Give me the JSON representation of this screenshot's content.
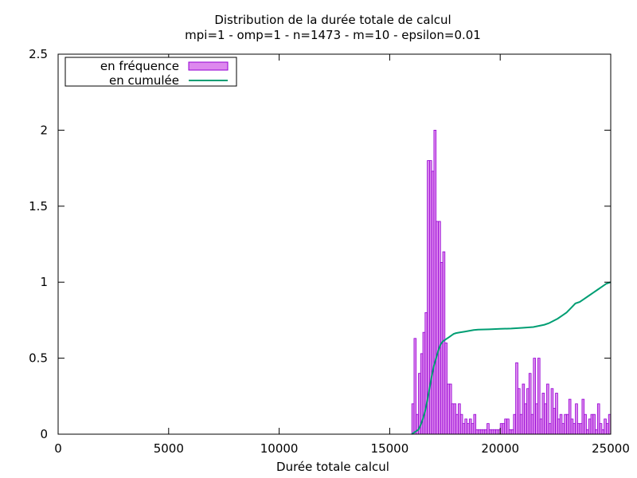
{
  "chart_data": {
    "type": "bar",
    "title": "Distribution de la durée totale de calcul",
    "subtitle": "mpi=1 - omp=1 - n=1473 - m=10 - epsilon=0.01",
    "xlabel": "Durée totale calcul",
    "ylabel": "",
    "xlim": [
      0,
      25000
    ],
    "ylim": [
      0,
      2.5
    ],
    "x_ticks": [
      "0",
      "5000",
      "10000",
      "15000",
      "20000",
      "25000"
    ],
    "y_ticks": [
      "0",
      "0.5",
      "1",
      "1.5",
      "2",
      "2.5"
    ],
    "grid": false,
    "legend_position": "top-left",
    "bin_width": 100,
    "colors": {
      "bar_fill": "#dd88ee",
      "bar_stroke": "#9400d3",
      "line": "#009e73"
    },
    "series": [
      {
        "name": "en fréquence",
        "type": "bar",
        "x": [
          16050,
          16150,
          16250,
          16350,
          16450,
          16550,
          16650,
          16750,
          16850,
          16950,
          17050,
          17150,
          17250,
          17350,
          17450,
          17550,
          17650,
          17750,
          17850,
          17950,
          18050,
          18150,
          18250,
          18350,
          18450,
          18550,
          18650,
          18750,
          18850,
          18950,
          19050,
          19150,
          19250,
          19350,
          19450,
          19550,
          19650,
          19750,
          19850,
          19950,
          20050,
          20150,
          20250,
          20350,
          20450,
          20550,
          20650,
          20750,
          20850,
          20950,
          21050,
          21150,
          21250,
          21350,
          21450,
          21550,
          21650,
          21750,
          21850,
          21950,
          22050,
          22150,
          22250,
          22350,
          22450,
          22550,
          22650,
          22750,
          22850,
          22950,
          23050,
          23150,
          23250,
          23350,
          23450,
          23550,
          23650,
          23750,
          23850,
          23950,
          24050,
          24150,
          24250,
          24350,
          24450,
          24550,
          24650,
          24750,
          24850,
          24950
        ],
        "values": [
          0.2,
          0.63,
          0.13,
          0.4,
          0.53,
          0.67,
          0.8,
          1.8,
          1.8,
          1.73,
          2.0,
          1.4,
          1.4,
          1.13,
          1.2,
          0.6,
          0.33,
          0.33,
          0.2,
          0.2,
          0.13,
          0.2,
          0.13,
          0.07,
          0.1,
          0.07,
          0.1,
          0.07,
          0.13,
          0.03,
          0.03,
          0.03,
          0.03,
          0.03,
          0.07,
          0.03,
          0.03,
          0.03,
          0.03,
          0.03,
          0.07,
          0.07,
          0.1,
          0.1,
          0.03,
          0.03,
          0.13,
          0.47,
          0.3,
          0.13,
          0.33,
          0.2,
          0.3,
          0.4,
          0.13,
          0.5,
          0.2,
          0.5,
          0.1,
          0.27,
          0.2,
          0.33,
          0.07,
          0.3,
          0.17,
          0.27,
          0.1,
          0.13,
          0.07,
          0.13,
          0.13,
          0.23,
          0.1,
          0.07,
          0.2,
          0.07,
          0.07,
          0.23,
          0.13,
          0.03,
          0.1,
          0.13,
          0.13,
          0.03,
          0.2,
          0.07,
          0.03,
          0.1,
          0.07,
          0.13
        ]
      },
      {
        "name": "en cumulée",
        "type": "line",
        "x": [
          16000,
          16100,
          16200,
          16300,
          16400,
          16500,
          16600,
          16700,
          16800,
          16900,
          17000,
          17100,
          17200,
          17300,
          17400,
          17500,
          17600,
          17700,
          17800,
          17900,
          18000,
          18200,
          18400,
          18600,
          18800,
          19000,
          19500,
          20000,
          20500,
          21000,
          21500,
          22000,
          22200,
          22400,
          22600,
          22800,
          23000,
          23200,
          23400,
          23600,
          23800,
          24000,
          24200,
          24400,
          24600,
          24800,
          25000
        ],
        "values": [
          0.0,
          0.01,
          0.02,
          0.03,
          0.06,
          0.1,
          0.15,
          0.22,
          0.3,
          0.38,
          0.45,
          0.5,
          0.55,
          0.59,
          0.61,
          0.62,
          0.63,
          0.64,
          0.65,
          0.66,
          0.665,
          0.67,
          0.675,
          0.68,
          0.685,
          0.688,
          0.69,
          0.693,
          0.695,
          0.7,
          0.705,
          0.72,
          0.73,
          0.745,
          0.76,
          0.78,
          0.8,
          0.83,
          0.86,
          0.87,
          0.89,
          0.91,
          0.93,
          0.95,
          0.97,
          0.99,
          1.0
        ]
      }
    ]
  }
}
